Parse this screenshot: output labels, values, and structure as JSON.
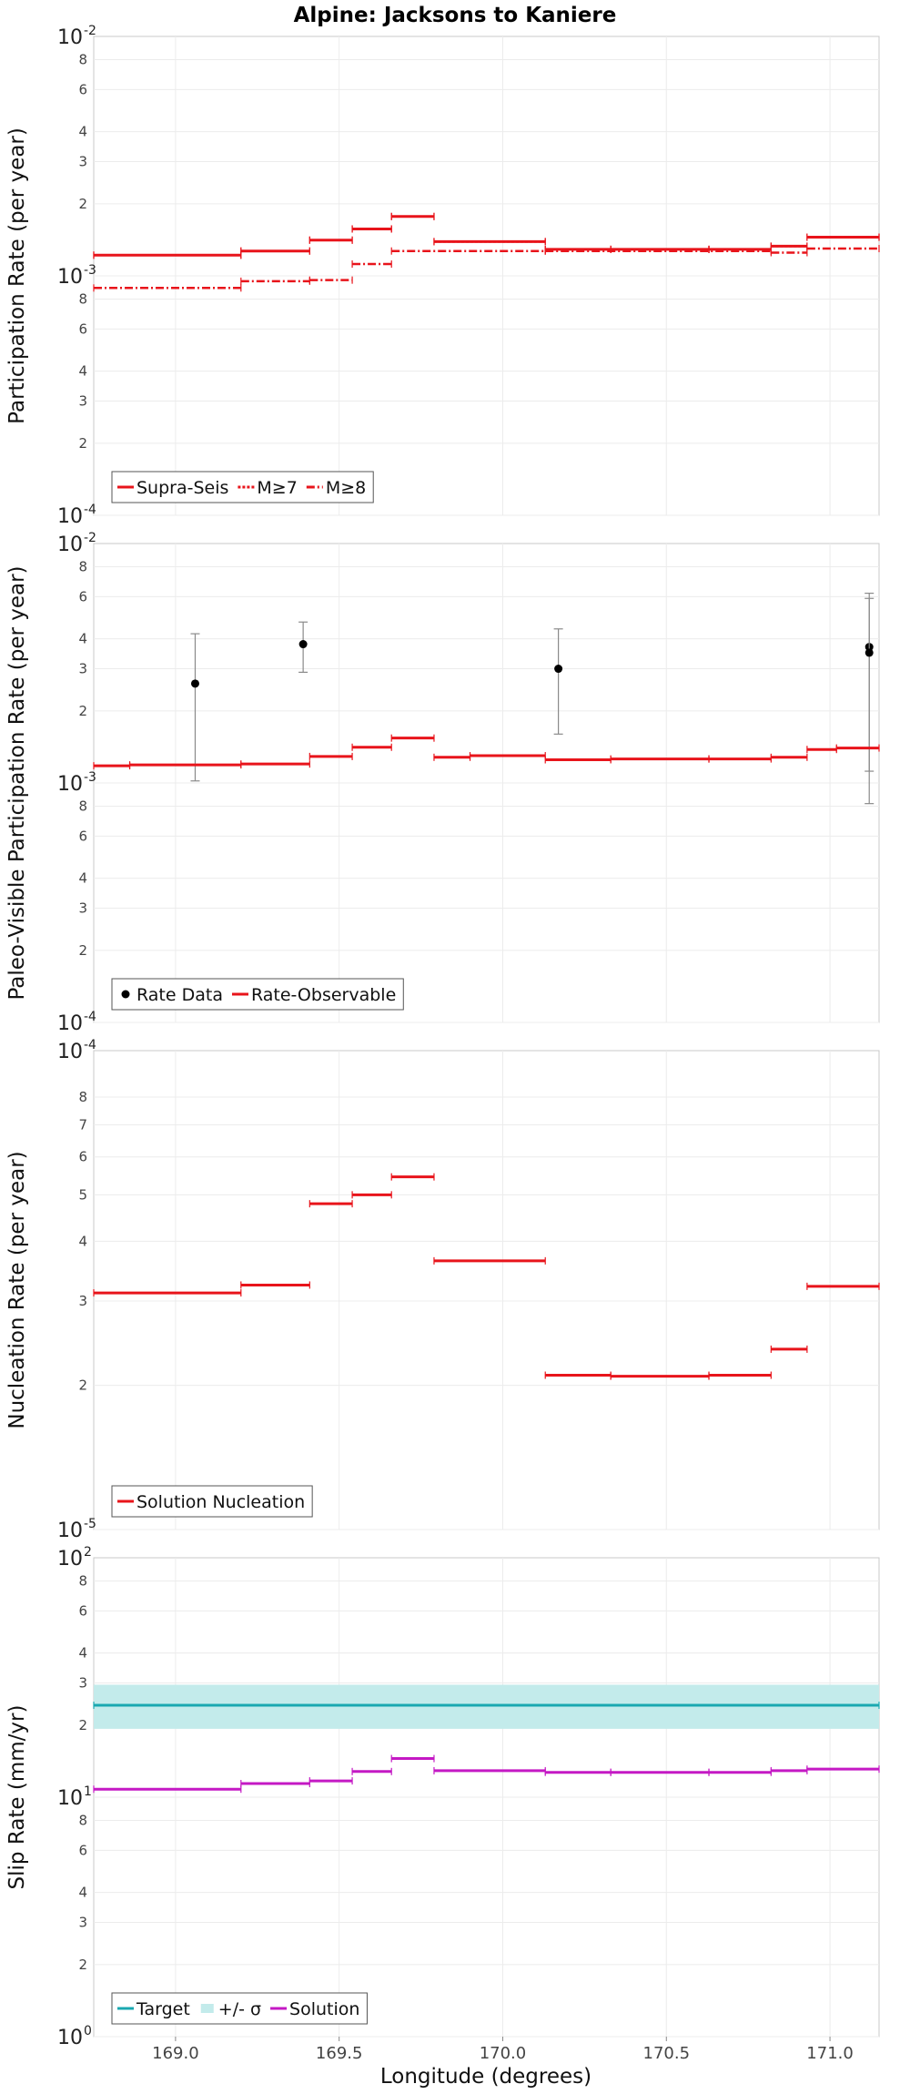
{
  "chart_data": {
    "title": "Alpine: Jacksons to Kaniere",
    "xlabel": "Longitude (degrees)",
    "xlim": [
      168.75,
      171.15
    ],
    "xticks": [
      169.0,
      169.5,
      170.0,
      170.5,
      171.0
    ],
    "xtick_labels": [
      "169.0",
      "169.5",
      "170.0",
      "170.5",
      "171.0"
    ],
    "panels": [
      {
        "type": "step",
        "name": "participation",
        "ylabel": "Participation Rate (per year)",
        "yscale": "log",
        "ylim": [
          0.0001,
          0.01
        ],
        "ytick_minor": [
          2,
          3,
          4,
          6,
          8
        ],
        "decade_labels": [
          {
            "base": "10",
            "exp": "-2",
            "value": 0.01
          },
          {
            "base": "10",
            "exp": "-3",
            "value": 0.001
          },
          {
            "base": "10",
            "exp": "-4",
            "value": 0.0001
          }
        ],
        "legend_position": "bottom-left",
        "series": [
          {
            "name": "Supra-Seis",
            "color": "#e8141b",
            "style": "solid",
            "segments": [
              [
                168.75,
                169.2,
                0.00122
              ],
              [
                169.2,
                169.41,
                0.00127
              ],
              [
                169.41,
                169.54,
                0.00141
              ],
              [
                169.54,
                169.66,
                0.00157
              ],
              [
                169.66,
                169.79,
                0.00177
              ],
              [
                169.79,
                170.13,
                0.00139
              ],
              [
                170.13,
                170.33,
                0.00129
              ],
              [
                170.33,
                170.63,
                0.00129
              ],
              [
                170.63,
                170.82,
                0.00129
              ],
              [
                170.82,
                170.93,
                0.00133
              ],
              [
                170.93,
                171.15,
                0.00145
              ]
            ]
          },
          {
            "name": "M≥7",
            "color": "#e8141b",
            "style": "dotted",
            "segments": [
              [
                168.75,
                169.2,
                0.00122
              ],
              [
                169.2,
                169.41,
                0.00127
              ],
              [
                169.41,
                169.54,
                0.00141
              ],
              [
                169.54,
                169.66,
                0.00157
              ],
              [
                169.66,
                169.79,
                0.00177
              ],
              [
                169.79,
                170.13,
                0.00139
              ],
              [
                170.13,
                170.33,
                0.00129
              ],
              [
                170.33,
                170.63,
                0.00129
              ],
              [
                170.63,
                170.82,
                0.00129
              ],
              [
                170.82,
                170.93,
                0.00133
              ],
              [
                170.93,
                171.15,
                0.00145
              ]
            ]
          },
          {
            "name": "M≥8",
            "color": "#e8141b",
            "style": "dashdot",
            "segments": [
              [
                168.75,
                169.2,
                0.00089
              ],
              [
                169.2,
                169.41,
                0.00095
              ],
              [
                169.41,
                169.54,
                0.00096
              ],
              [
                169.54,
                169.66,
                0.00112
              ],
              [
                169.66,
                170.13,
                0.00127
              ],
              [
                170.13,
                170.82,
                0.00127
              ],
              [
                170.82,
                170.93,
                0.00125
              ],
              [
                170.93,
                171.15,
                0.0013
              ]
            ]
          }
        ]
      },
      {
        "type": "step+errorbar",
        "name": "paleo",
        "ylabel": "Paleo-Visible Participation Rate (per year)",
        "yscale": "log",
        "ylim": [
          0.0001,
          0.01
        ],
        "ytick_minor": [
          2,
          3,
          4,
          6,
          8
        ],
        "decade_labels": [
          {
            "base": "10",
            "exp": "-2",
            "value": 0.01
          },
          {
            "base": "10",
            "exp": "-3",
            "value": 0.001
          },
          {
            "base": "10",
            "exp": "-4",
            "value": 0.0001
          }
        ],
        "legend_position": "bottom-left",
        "points": {
          "name": "Rate Data",
          "color": "#000000",
          "data": [
            {
              "x": 169.06,
              "y": 0.0026,
              "lo": 0.00102,
              "hi": 0.0042
            },
            {
              "x": 169.39,
              "y": 0.0038,
              "lo": 0.0029,
              "hi": 0.0047
            },
            {
              "x": 170.17,
              "y": 0.003,
              "lo": 0.0016,
              "hi": 0.0044
            },
            {
              "x": 171.12,
              "y": 0.0037,
              "lo": 0.00082,
              "hi": 0.0062
            },
            {
              "x": 171.12,
              "y": 0.0035,
              "lo": 0.00112,
              "hi": 0.0059
            }
          ]
        },
        "series": [
          {
            "name": "Rate-Observable",
            "color": "#e8141b",
            "style": "solid",
            "segments": [
              [
                168.75,
                168.86,
                0.00118
              ],
              [
                168.86,
                169.2,
                0.00119
              ],
              [
                169.2,
                169.41,
                0.0012
              ],
              [
                169.41,
                169.54,
                0.00129
              ],
              [
                169.54,
                169.66,
                0.00141
              ],
              [
                169.66,
                169.79,
                0.00154
              ],
              [
                169.79,
                169.9,
                0.00128
              ],
              [
                169.9,
                170.13,
                0.0013
              ],
              [
                170.13,
                170.33,
                0.00125
              ],
              [
                170.33,
                170.63,
                0.00126
              ],
              [
                170.63,
                170.82,
                0.00126
              ],
              [
                170.82,
                170.93,
                0.00128
              ],
              [
                170.93,
                171.02,
                0.00138
              ],
              [
                171.02,
                171.15,
                0.0014
              ]
            ]
          }
        ]
      },
      {
        "type": "step",
        "name": "nucleation",
        "ylabel": "Nucleation Rate (per year)",
        "yscale": "log",
        "ylim": [
          1e-05,
          0.0001
        ],
        "ytick_minor": [
          2,
          3,
          4,
          5,
          6,
          7,
          8
        ],
        "decade_labels": [
          {
            "base": "10",
            "exp": "-4",
            "value": 0.0001
          },
          {
            "base": "10",
            "exp": "-5",
            "value": 1e-05
          }
        ],
        "legend_position": "bottom-left",
        "series": [
          {
            "name": "Solution Nucleation",
            "color": "#e8141b",
            "style": "solid",
            "segments": [
              [
                168.75,
                169.2,
                3.12e-05
              ],
              [
                169.2,
                169.41,
                3.24e-05
              ],
              [
                169.41,
                169.54,
                4.79e-05
              ],
              [
                169.54,
                169.66,
                5e-05
              ],
              [
                169.66,
                169.79,
                5.45e-05
              ],
              [
                169.79,
                170.13,
                3.64e-05
              ],
              [
                170.13,
                170.33,
                2.1e-05
              ],
              [
                170.33,
                170.63,
                2.09e-05
              ],
              [
                170.63,
                170.82,
                2.1e-05
              ],
              [
                170.82,
                170.93,
                2.38e-05
              ],
              [
                170.93,
                171.15,
                3.22e-05
              ]
            ]
          }
        ]
      },
      {
        "type": "step+band",
        "name": "slip",
        "ylabel": "Slip Rate (mm/yr)",
        "yscale": "log",
        "ylim": [
          1,
          100
        ],
        "ytick_minor": [
          2,
          3,
          4,
          6,
          8
        ],
        "decade_labels": [
          {
            "base": "10",
            "exp": "2",
            "value": 100
          },
          {
            "base": "10",
            "exp": "1",
            "value": 10
          },
          {
            "base": "10",
            "exp": "0",
            "value": 1
          }
        ],
        "legend_position": "bottom-left",
        "band": {
          "name": "+/- σ",
          "color": "#c3ebeb",
          "x": [
            168.75,
            171.15
          ],
          "lo": 19.3,
          "hi": 29.5
        },
        "series": [
          {
            "name": "Target",
            "color": "#1aa8b0",
            "style": "solid",
            "segments": [
              [
                168.75,
                171.15,
                24.2
              ]
            ]
          },
          {
            "name": "Solution",
            "color": "#c419c4",
            "style": "solid",
            "segments": [
              [
                168.75,
                169.2,
                10.8
              ],
              [
                169.2,
                169.41,
                11.4
              ],
              [
                169.41,
                169.54,
                11.7
              ],
              [
                169.54,
                169.66,
                12.8
              ],
              [
                169.66,
                169.79,
                14.5
              ],
              [
                169.79,
                170.13,
                12.9
              ],
              [
                170.13,
                170.33,
                12.7
              ],
              [
                170.33,
                170.63,
                12.7
              ],
              [
                170.63,
                170.82,
                12.7
              ],
              [
                170.82,
                170.93,
                12.9
              ],
              [
                170.93,
                171.15,
                13.1
              ]
            ]
          }
        ]
      }
    ]
  }
}
